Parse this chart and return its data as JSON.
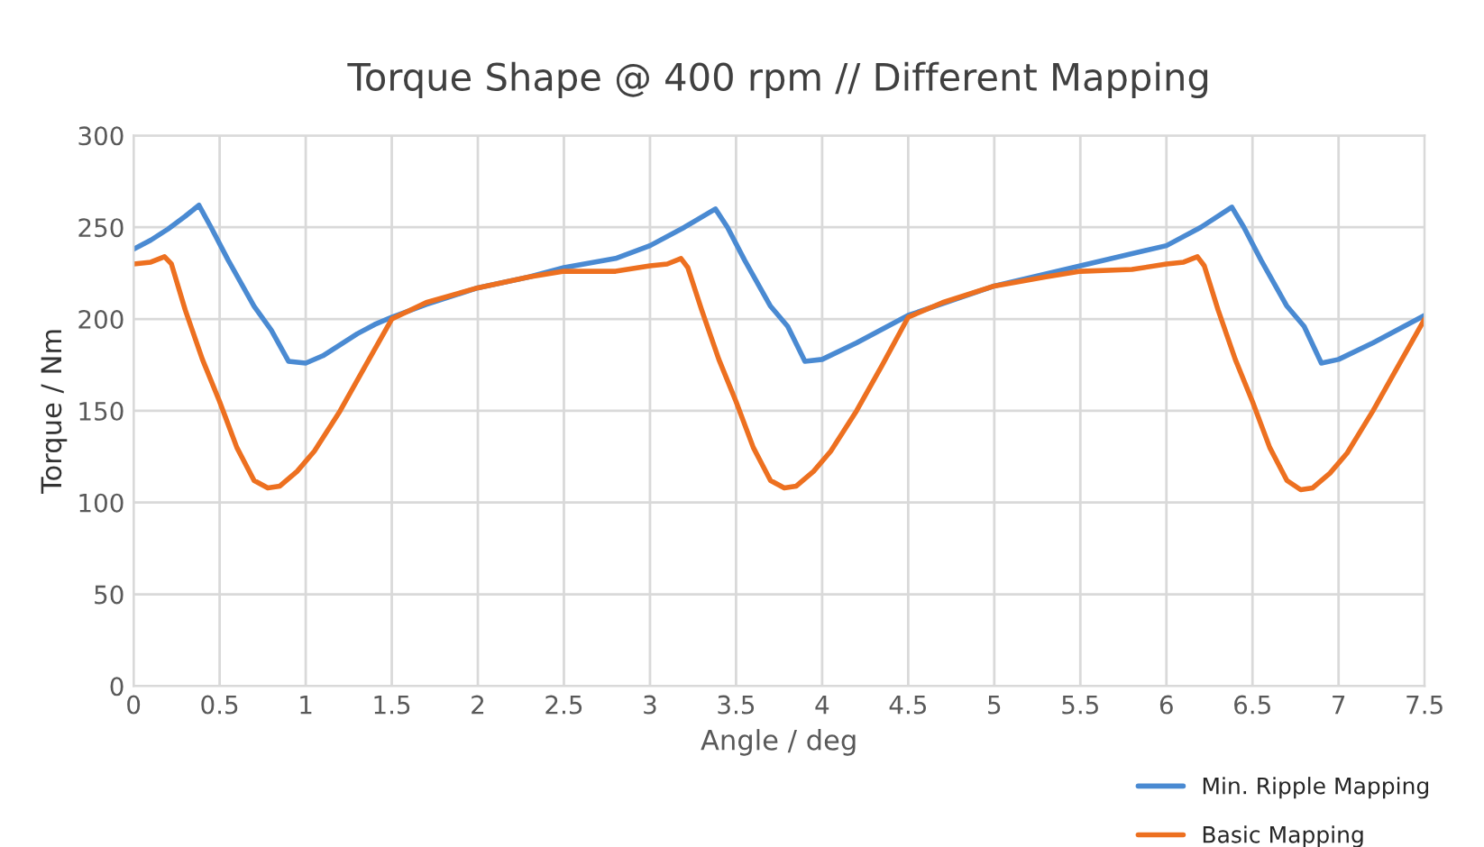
{
  "chart_data": {
    "type": "line",
    "title": "Torque Shape @ 400 rpm // Different Mapping",
    "xlabel": "Angle / deg",
    "ylabel": "Torque / Nm",
    "xlim": [
      0,
      7.5
    ],
    "xticks": [
      0,
      0.5,
      1,
      1.5,
      2,
      2.5,
      3,
      3.5,
      4,
      4.5,
      5,
      5.5,
      6,
      6.5,
      7,
      7.5
    ],
    "ylim": [
      0,
      300
    ],
    "yticks": [
      0,
      50,
      100,
      150,
      200,
      250,
      300
    ],
    "grid": true,
    "legend": "bottom right",
    "marker": "none",
    "line_style": "solid",
    "series": [
      {
        "name": "Min. Ripple Mapping",
        "color": "#4a8ad2",
        "x": [
          0,
          0.1,
          0.2,
          0.3,
          0.38,
          0.45,
          0.55,
          0.7,
          0.8,
          0.9,
          1.0,
          1.1,
          1.2,
          1.3,
          1.4,
          1.5,
          1.7,
          2.0,
          2.3,
          2.5,
          2.8,
          3.0,
          3.2,
          3.38,
          3.45,
          3.55,
          3.7,
          3.8,
          3.9,
          4.0,
          4.2,
          4.5,
          5.0,
          5.5,
          6.0,
          6.2,
          6.38,
          6.45,
          6.55,
          6.7,
          6.8,
          6.9,
          7.0,
          7.2,
          7.5
        ],
        "values": [
          238,
          243,
          249,
          256,
          262,
          250,
          232,
          207,
          194,
          177,
          176,
          180,
          186,
          192,
          197,
          201,
          208,
          217,
          223,
          228,
          233,
          240,
          250,
          260,
          250,
          232,
          207,
          196,
          177,
          178,
          187,
          202,
          218,
          229,
          240,
          250,
          261,
          250,
          232,
          207,
          196,
          176,
          178,
          187,
          202
        ]
      },
      {
        "name": "Basic Mapping",
        "color": "#ed7020",
        "x": [
          0,
          0.1,
          0.18,
          0.22,
          0.3,
          0.4,
          0.5,
          0.6,
          0.7,
          0.78,
          0.85,
          0.95,
          1.05,
          1.2,
          1.35,
          1.5,
          1.7,
          2.0,
          2.3,
          2.5,
          2.8,
          3.0,
          3.1,
          3.18,
          3.22,
          3.3,
          3.4,
          3.5,
          3.6,
          3.7,
          3.78,
          3.85,
          3.95,
          4.05,
          4.2,
          4.35,
          4.5,
          4.7,
          5.0,
          5.3,
          5.5,
          5.8,
          6.0,
          6.1,
          6.18,
          6.22,
          6.3,
          6.4,
          6.5,
          6.6,
          6.7,
          6.78,
          6.85,
          6.95,
          7.05,
          7.2,
          7.35,
          7.5
        ],
        "values": [
          230,
          231,
          234,
          230,
          205,
          178,
          155,
          130,
          112,
          108,
          109,
          117,
          128,
          150,
          175,
          200,
          209,
          217,
          223,
          226,
          226,
          229,
          230,
          233,
          228,
          205,
          178,
          155,
          130,
          112,
          108,
          109,
          117,
          128,
          150,
          175,
          201,
          209,
          218,
          223,
          226,
          227,
          230,
          231,
          234,
          229,
          205,
          178,
          155,
          130,
          112,
          107,
          108,
          116,
          127,
          150,
          175,
          200
        ]
      }
    ]
  }
}
